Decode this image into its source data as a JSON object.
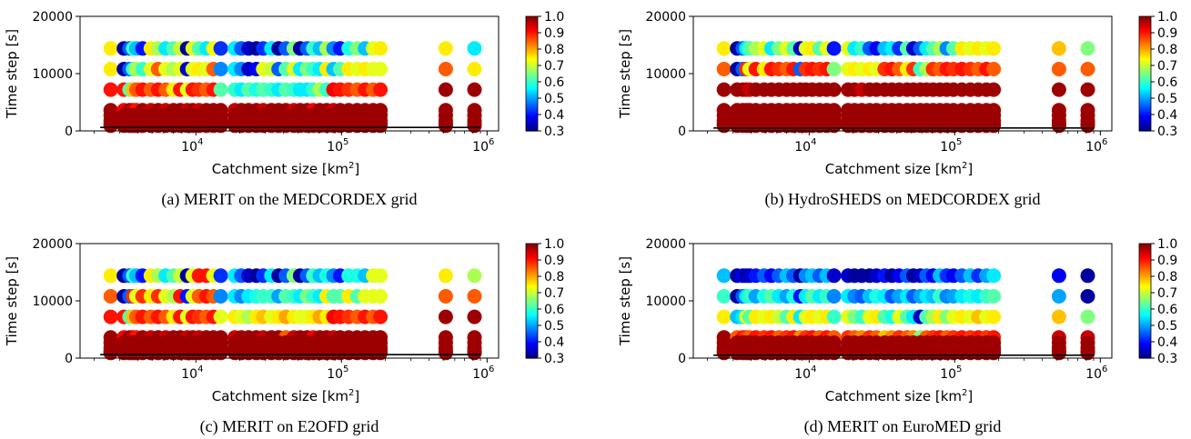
{
  "figure": {
    "x_axis_label_main": "Catchment size ",
    "x_axis_label_unit": "[km",
    "x_axis_label_sup": "2",
    "x_axis_label_end": "]",
    "y_axis_label": "Time step [s]",
    "x_tick_base": "10",
    "x_tick_exponents": [
      "4",
      "5",
      "6"
    ],
    "y_tick_labels": [
      "0",
      "10000",
      "20000"
    ],
    "colorbar_ticks": [
      "1.0",
      "0.9",
      "0.8",
      "0.7",
      "0.6",
      "0.5",
      "0.4",
      "0.3"
    ]
  },
  "chart_data": [
    {
      "type": "scatter",
      "caption": "(a) MERIT on the MEDCORDEX grid",
      "x_scale": "log",
      "xlim": [
        1600,
        1200000
      ],
      "ylim": [
        0,
        20000
      ],
      "colorbar_range": [
        0.3,
        1.0
      ],
      "colormap": "jet",
      "time_steps": [
        14400,
        10800,
        7200,
        3600,
        2700,
        1800,
        1200,
        900
      ],
      "reference_line": {
        "x": [
          2200,
          900000
        ],
        "y": 600
      },
      "catchment_sizes": [
        2600,
        3200,
        3500,
        3700,
        3900,
        4300,
        4900,
        5500,
        6200,
        7000,
        7800,
        8700,
        9500,
        10500,
        11800,
        13200,
        14800,
        18500,
        20500,
        23000,
        26000,
        29000,
        33000,
        37000,
        41500,
        47000,
        52000,
        58000,
        64000,
        71000,
        79000,
        88000,
        98000,
        112000,
        128000,
        145000,
        165000,
        185000,
        520000,
        820000
      ],
      "scores_by_time_step": {
        "14400": [
          0.75,
          0.32,
          0.45,
          0.6,
          0.52,
          0.4,
          0.75,
          0.68,
          0.55,
          0.62,
          0.7,
          0.32,
          0.72,
          0.62,
          0.55,
          0.73,
          0.42,
          0.55,
          0.45,
          0.35,
          0.32,
          0.42,
          0.55,
          0.32,
          0.45,
          0.65,
          0.32,
          0.45,
          0.6,
          0.52,
          0.68,
          0.48,
          0.4,
          0.58,
          0.65,
          0.52,
          0.72,
          0.75,
          0.75,
          0.55
        ],
        "10800": [
          0.75,
          0.32,
          0.45,
          0.6,
          0.68,
          0.6,
          0.72,
          0.85,
          0.72,
          0.68,
          0.72,
          0.35,
          0.72,
          0.75,
          0.72,
          0.85,
          0.48,
          0.55,
          0.48,
          0.35,
          0.38,
          0.72,
          0.7,
          0.45,
          0.62,
          0.72,
          0.55,
          0.65,
          0.6,
          0.55,
          0.75,
          0.52,
          0.62,
          0.75,
          0.72,
          0.75,
          0.72,
          0.72,
          0.85,
          0.75
        ],
        "7200": [
          0.9,
          0.9,
          0.62,
          0.78,
          0.85,
          0.9,
          0.85,
          0.9,
          0.85,
          0.75,
          0.9,
          0.72,
          0.9,
          0.88,
          0.85,
          0.9,
          0.62,
          0.6,
          0.55,
          0.62,
          0.58,
          0.62,
          0.6,
          0.55,
          0.62,
          0.6,
          0.55,
          0.55,
          0.6,
          0.68,
          0.6,
          0.92,
          0.9,
          0.88,
          0.85,
          0.9,
          0.85,
          0.9,
          0.98,
          0.98
        ],
        "3600": [
          0.98,
          0.92,
          0.98,
          0.95,
          0.9,
          0.98,
          0.95,
          0.98,
          0.95,
          0.98,
          0.98,
          0.95,
          0.98,
          0.95,
          0.98,
          0.98,
          0.98,
          0.95,
          0.98,
          0.98,
          0.98,
          0.95,
          0.98,
          0.98,
          0.98,
          0.95,
          0.98,
          0.98,
          0.92,
          0.98,
          0.98,
          0.95,
          0.98,
          0.98,
          0.98,
          0.98,
          0.98,
          0.98,
          0.98,
          0.98
        ],
        "low": 0.98
      }
    },
    {
      "type": "scatter",
      "caption": "(b) HydroSHEDS on MEDCORDEX grid",
      "x_scale": "log",
      "xlim": [
        1600,
        1200000
      ],
      "ylim": [
        0,
        20000
      ],
      "colorbar_range": [
        0.3,
        1.0
      ],
      "colormap": "jet",
      "time_steps": [
        14400,
        10800,
        7200,
        3600,
        2700,
        1800,
        1200,
        900
      ],
      "reference_line": {
        "x": [
          2200,
          900000
        ],
        "y": 500
      },
      "catchment_sizes": [
        2600,
        3200,
        3500,
        3700,
        3900,
        4300,
        4900,
        5500,
        6200,
        7000,
        7800,
        8700,
        9500,
        10500,
        11800,
        13200,
        14800,
        18500,
        20500,
        23000,
        26000,
        29000,
        33000,
        37000,
        41500,
        47000,
        52000,
        58000,
        64000,
        71000,
        79000,
        88000,
        98000,
        112000,
        128000,
        145000,
        165000,
        185000,
        520000,
        820000
      ],
      "scores_by_time_step": {
        "14400": [
          0.75,
          0.32,
          0.45,
          0.55,
          0.62,
          0.68,
          0.72,
          0.55,
          0.65,
          0.72,
          0.62,
          0.35,
          0.72,
          0.75,
          0.62,
          0.72,
          0.4,
          0.72,
          0.55,
          0.6,
          0.45,
          0.38,
          0.52,
          0.55,
          0.42,
          0.62,
          0.35,
          0.45,
          0.55,
          0.62,
          0.68,
          0.48,
          0.62,
          0.75,
          0.72,
          0.75,
          0.72,
          0.75,
          0.78,
          0.65
        ],
        "10800": [
          0.85,
          0.32,
          0.45,
          0.88,
          0.72,
          0.9,
          0.75,
          0.9,
          0.88,
          0.85,
          0.9,
          0.45,
          0.88,
          0.9,
          0.88,
          0.9,
          0.65,
          0.72,
          0.75,
          0.72,
          0.75,
          0.72,
          0.88,
          0.9,
          0.85,
          0.75,
          0.88,
          0.6,
          0.68,
          0.88,
          0.85,
          0.9,
          0.88,
          0.9,
          0.88,
          0.85,
          0.9,
          0.85,
          0.85,
          0.85
        ],
        "7200": [
          0.98,
          0.98,
          0.98,
          0.98,
          0.95,
          0.98,
          0.98,
          0.98,
          0.98,
          0.98,
          0.98,
          0.98,
          0.98,
          0.98,
          0.98,
          0.98,
          0.98,
          0.98,
          0.98,
          0.95,
          0.98,
          0.98,
          0.98,
          0.98,
          0.98,
          0.98,
          0.98,
          0.98,
          0.98,
          0.98,
          0.98,
          0.98,
          0.98,
          0.98,
          0.98,
          0.98,
          0.98,
          0.98,
          0.98,
          0.98
        ],
        "3600": [
          0.98,
          0.98,
          0.98,
          0.98,
          0.98,
          0.98,
          0.98,
          0.98,
          0.98,
          0.98,
          0.98,
          0.98,
          0.98,
          0.98,
          0.98,
          0.98,
          0.98,
          0.98,
          0.98,
          0.98,
          0.98,
          0.98,
          0.98,
          0.98,
          0.98,
          0.98,
          0.98,
          0.98,
          0.98,
          0.98,
          0.98,
          0.98,
          0.98,
          0.98,
          0.98,
          0.98,
          0.98,
          0.98,
          0.98,
          0.98
        ],
        "low": 0.98
      }
    },
    {
      "type": "scatter",
      "caption": "(c) MERIT on E2OFD grid",
      "x_scale": "log",
      "xlim": [
        1600,
        1200000
      ],
      "ylim": [
        0,
        20000
      ],
      "colorbar_range": [
        0.3,
        1.0
      ],
      "colormap": "jet",
      "time_steps": [
        14400,
        10800,
        7200,
        3600,
        2700,
        1800,
        1200,
        900
      ],
      "reference_line": {
        "x": [
          2200,
          900000
        ],
        "y": 600
      },
      "catchment_sizes": [
        2600,
        3200,
        3500,
        3700,
        3900,
        4300,
        4900,
        5500,
        6200,
        7000,
        7800,
        8700,
        9500,
        10500,
        11800,
        13200,
        14800,
        18500,
        20500,
        23000,
        26000,
        29000,
        33000,
        37000,
        41500,
        47000,
        52000,
        58000,
        64000,
        71000,
        79000,
        88000,
        98000,
        112000,
        128000,
        145000,
        165000,
        185000,
        520000,
        820000
      ],
      "scores_by_time_step": {
        "14400": [
          0.75,
          0.32,
          0.45,
          0.6,
          0.52,
          0.4,
          0.75,
          0.68,
          0.55,
          0.62,
          0.7,
          0.32,
          0.72,
          0.9,
          0.9,
          0.72,
          0.42,
          0.55,
          0.45,
          0.35,
          0.32,
          0.42,
          0.55,
          0.32,
          0.45,
          0.65,
          0.32,
          0.45,
          0.6,
          0.52,
          0.58,
          0.48,
          0.4,
          0.58,
          0.58,
          0.52,
          0.72,
          0.72,
          0.75,
          0.68
        ],
        "10800": [
          0.85,
          0.32,
          0.45,
          0.88,
          0.72,
          0.88,
          0.75,
          0.88,
          0.72,
          0.68,
          0.9,
          0.4,
          0.72,
          0.85,
          0.9,
          0.85,
          0.48,
          0.55,
          0.48,
          0.55,
          0.58,
          0.6,
          0.6,
          0.5,
          0.62,
          0.6,
          0.55,
          0.65,
          0.6,
          0.55,
          0.75,
          0.62,
          0.62,
          0.75,
          0.62,
          0.72,
          0.72,
          0.72,
          0.85,
          0.85
        ],
        "7200": [
          0.9,
          0.9,
          0.62,
          0.78,
          0.85,
          0.9,
          0.85,
          0.9,
          0.85,
          0.75,
          0.9,
          0.72,
          0.9,
          0.88,
          0.85,
          0.9,
          0.72,
          0.75,
          0.72,
          0.68,
          0.75,
          0.78,
          0.72,
          0.75,
          0.8,
          0.75,
          0.72,
          0.72,
          0.75,
          0.8,
          0.75,
          0.92,
          0.9,
          0.88,
          0.85,
          0.9,
          0.85,
          0.9,
          0.98,
          0.98
        ],
        "3600": [
          0.98,
          0.92,
          0.98,
          0.95,
          0.9,
          0.98,
          0.95,
          0.98,
          0.95,
          0.98,
          0.98,
          0.95,
          0.98,
          0.95,
          0.98,
          0.98,
          0.98,
          0.95,
          0.98,
          0.98,
          0.98,
          0.95,
          0.98,
          0.98,
          0.85,
          0.95,
          0.98,
          0.98,
          0.92,
          0.98,
          0.98,
          0.95,
          0.98,
          0.98,
          0.98,
          0.98,
          0.98,
          0.98,
          0.98,
          0.98
        ],
        "low": 0.98
      }
    },
    {
      "type": "scatter",
      "caption": "(d) MERIT on EuroMED grid",
      "x_scale": "log",
      "xlim": [
        1600,
        1200000
      ],
      "ylim": [
        0,
        20000
      ],
      "colorbar_range": [
        0.3,
        1.0
      ],
      "colormap": "jet",
      "time_steps": [
        14400,
        10800,
        7200,
        3600,
        2700,
        1800,
        1200,
        900
      ],
      "reference_line": {
        "x": [
          2200,
          900000
        ],
        "y": 500
      },
      "catchment_sizes": [
        2600,
        3200,
        3500,
        3700,
        3900,
        4300,
        4900,
        5500,
        6200,
        7000,
        7800,
        8700,
        9500,
        10500,
        11800,
        13200,
        14800,
        18500,
        20500,
        23000,
        26000,
        29000,
        33000,
        37000,
        41500,
        47000,
        52000,
        58000,
        64000,
        71000,
        79000,
        88000,
        98000,
        112000,
        128000,
        145000,
        165000,
        185000,
        520000,
        820000
      ],
      "scores_by_time_step": {
        "14400": [
          0.52,
          0.32,
          0.38,
          0.32,
          0.35,
          0.4,
          0.45,
          0.38,
          0.45,
          0.52,
          0.45,
          0.32,
          0.48,
          0.52,
          0.45,
          0.52,
          0.35,
          0.35,
          0.32,
          0.32,
          0.32,
          0.35,
          0.4,
          0.32,
          0.38,
          0.45,
          0.32,
          0.35,
          0.45,
          0.38,
          0.52,
          0.42,
          0.38,
          0.45,
          0.52,
          0.42,
          0.5,
          0.55,
          0.38,
          0.32
        ],
        "10800": [
          0.6,
          0.32,
          0.45,
          0.55,
          0.6,
          0.5,
          0.58,
          0.62,
          0.55,
          0.5,
          0.58,
          0.4,
          0.55,
          0.62,
          0.55,
          0.6,
          0.48,
          0.55,
          0.48,
          0.45,
          0.52,
          0.58,
          0.55,
          0.45,
          0.5,
          0.55,
          0.45,
          0.5,
          0.55,
          0.52,
          0.6,
          0.48,
          0.5,
          0.55,
          0.58,
          0.55,
          0.6,
          0.62,
          0.5,
          0.32
        ],
        "7200": [
          0.75,
          0.52,
          0.55,
          0.72,
          0.62,
          0.75,
          0.72,
          0.75,
          0.7,
          0.62,
          0.75,
          0.55,
          0.72,
          0.75,
          0.72,
          0.75,
          0.6,
          0.72,
          0.65,
          0.6,
          0.72,
          0.75,
          0.62,
          0.58,
          0.72,
          0.62,
          0.55,
          0.35,
          0.62,
          0.68,
          0.75,
          0.65,
          0.72,
          0.75,
          0.72,
          0.78,
          0.72,
          0.75,
          0.78,
          0.65
        ],
        "3600": [
          0.98,
          0.85,
          0.9,
          0.88,
          0.85,
          0.9,
          0.88,
          0.9,
          0.85,
          0.88,
          0.9,
          0.82,
          0.88,
          0.9,
          0.85,
          0.9,
          0.85,
          0.88,
          0.85,
          0.82,
          0.88,
          0.85,
          0.78,
          0.82,
          0.88,
          0.85,
          0.82,
          0.65,
          0.85,
          0.88,
          0.9,
          0.85,
          0.88,
          0.9,
          0.88,
          0.9,
          0.88,
          0.9,
          0.95,
          0.95
        ],
        "low": 0.98
      }
    }
  ]
}
